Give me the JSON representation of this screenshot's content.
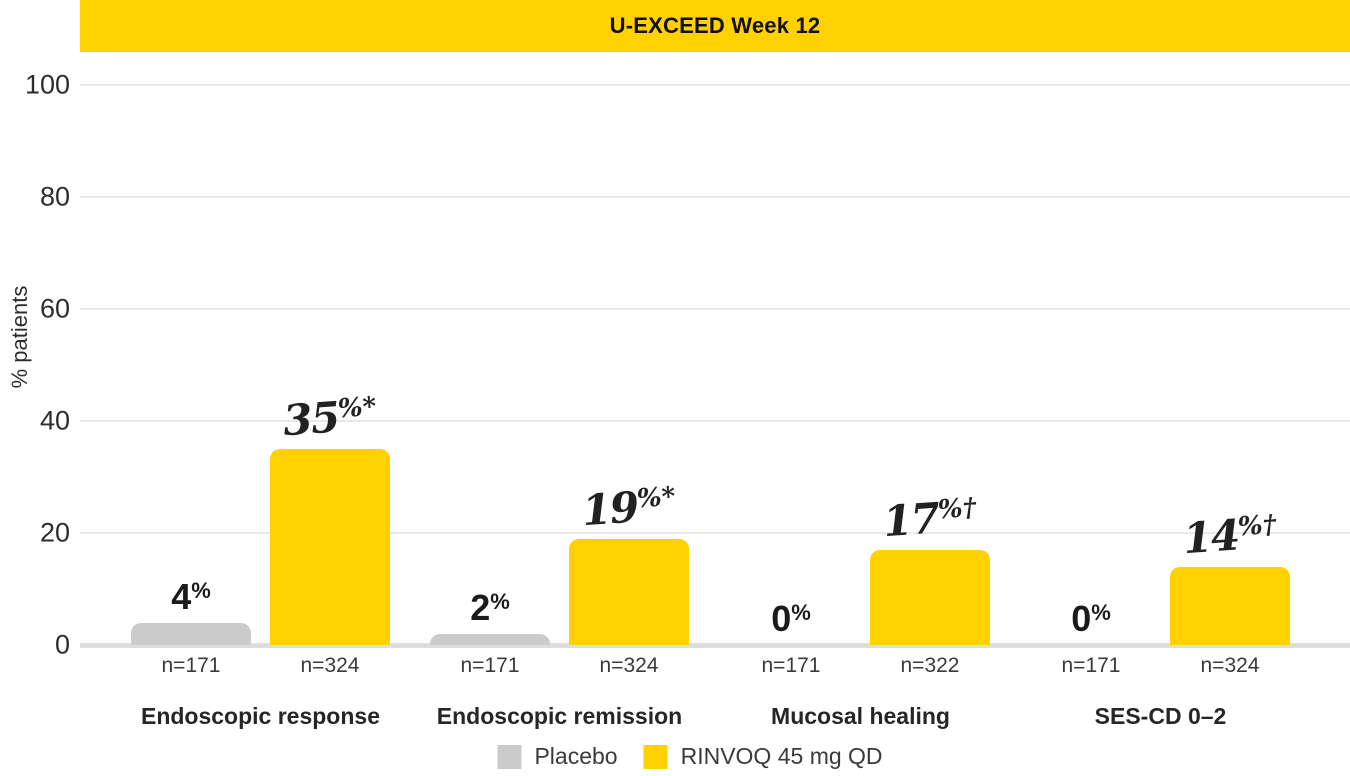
{
  "banner": {
    "title": "U-EXCEED Week 12",
    "bg_color": "#FFD100",
    "text_color": "#111111"
  },
  "y_axis": {
    "title": "% patients",
    "ticks": [
      0,
      20,
      40,
      60,
      80,
      100
    ]
  },
  "chart_data": {
    "type": "bar",
    "title": "U-EXCEED Week 12",
    "xlabel": "",
    "ylabel": "% patients",
    "ylim": [
      0,
      100
    ],
    "grid": true,
    "legend_position": "bottom",
    "categories": [
      "Endoscopic response",
      "Endoscopic remission",
      "Mucosal healing",
      "SES-CD 0–2"
    ],
    "series": [
      {
        "name": "Placebo",
        "color": "#CBCBCB",
        "label_style": "plain",
        "values": [
          4,
          2,
          0,
          0
        ],
        "value_labels": [
          {
            "main": "4",
            "sup": "%"
          },
          {
            "main": "2",
            "sup": "%"
          },
          {
            "main": "0",
            "sup": "%"
          },
          {
            "main": "0",
            "sup": "%"
          }
        ],
        "n_labels": [
          "n=171",
          "n=171",
          "n=171",
          "n=171"
        ]
      },
      {
        "name": "RINVOQ 45 mg QD",
        "color": "#FFD100",
        "label_style": "script",
        "values": [
          35,
          19,
          17,
          14
        ],
        "value_labels": [
          {
            "main": "35",
            "sup": "%*"
          },
          {
            "main": "19",
            "sup": "%*"
          },
          {
            "main": "17",
            "sup": "%†"
          },
          {
            "main": "14",
            "sup": "%†"
          }
        ],
        "n_labels": [
          "n=324",
          "n=324",
          "n=322",
          "n=324"
        ]
      }
    ]
  }
}
